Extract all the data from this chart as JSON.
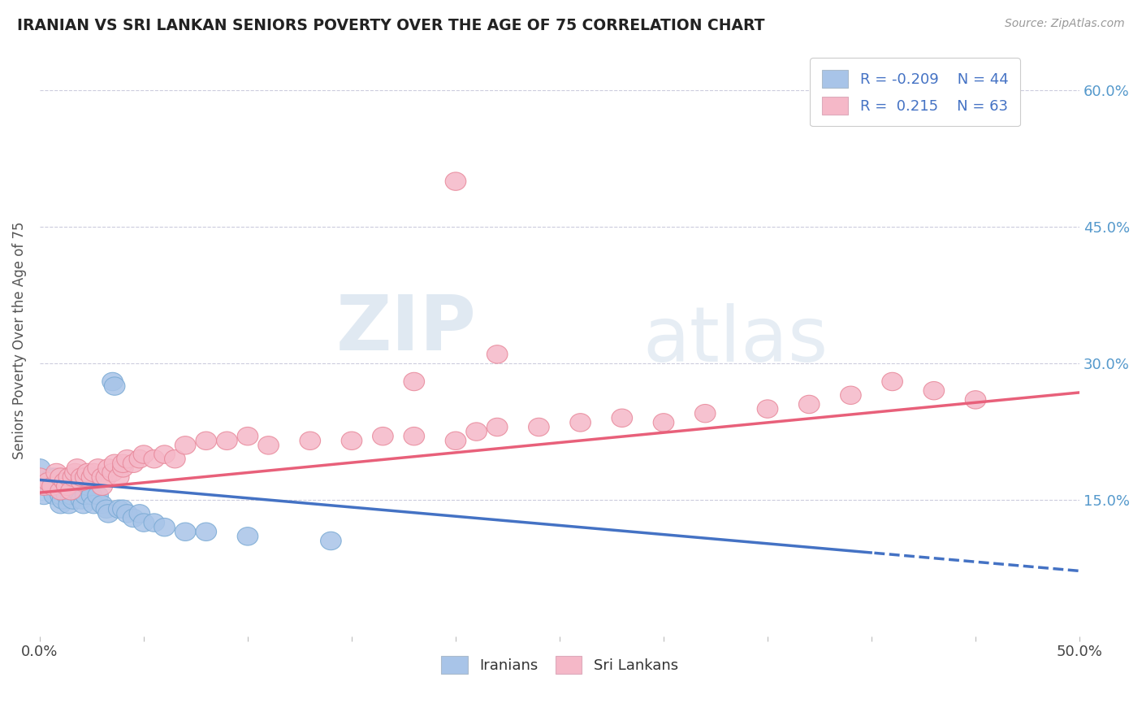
{
  "title": "IRANIAN VS SRI LANKAN SENIORS POVERTY OVER THE AGE OF 75 CORRELATION CHART",
  "source": "Source: ZipAtlas.com",
  "ylabel": "Seniors Poverty Over the Age of 75",
  "xlim": [
    0.0,
    0.5
  ],
  "ylim": [
    0.0,
    0.65
  ],
  "watermark_line1": "ZIP",
  "watermark_line2": "atlas",
  "iranian_color": "#a8c4e8",
  "iranian_edge": "#7aaad4",
  "srilanka_color": "#f5b8c8",
  "srilanka_edge": "#e8889a",
  "iranian_line_color": "#4472c4",
  "srilanka_line_color": "#e8607a",
  "background_color": "#ffffff",
  "grid_color": "#ccccdd",
  "legend_text_color": "#4472c4",
  "right_label_color": "#5599cc",
  "iranians_x": [
    0.0,
    0.002,
    0.003,
    0.005,
    0.006,
    0.007,
    0.007,
    0.008,
    0.009,
    0.01,
    0.01,
    0.011,
    0.012,
    0.013,
    0.014,
    0.015,
    0.015,
    0.016,
    0.017,
    0.018,
    0.02,
    0.021,
    0.022,
    0.023,
    0.025,
    0.026,
    0.028,
    0.03,
    0.032,
    0.033,
    0.035,
    0.036,
    0.038,
    0.04,
    0.042,
    0.045,
    0.048,
    0.05,
    0.055,
    0.06,
    0.07,
    0.08,
    0.1,
    0.14
  ],
  "iranians_y": [
    0.185,
    0.155,
    0.165,
    0.17,
    0.175,
    0.155,
    0.165,
    0.175,
    0.16,
    0.145,
    0.155,
    0.15,
    0.16,
    0.155,
    0.145,
    0.155,
    0.165,
    0.15,
    0.17,
    0.16,
    0.15,
    0.145,
    0.155,
    0.165,
    0.155,
    0.145,
    0.155,
    0.145,
    0.14,
    0.135,
    0.28,
    0.275,
    0.14,
    0.14,
    0.135,
    0.13,
    0.135,
    0.125,
    0.125,
    0.12,
    0.115,
    0.115,
    0.11,
    0.105
  ],
  "srilanka_x": [
    0.0,
    0.002,
    0.004,
    0.006,
    0.008,
    0.01,
    0.01,
    0.012,
    0.013,
    0.014,
    0.015,
    0.016,
    0.017,
    0.018,
    0.02,
    0.02,
    0.022,
    0.023,
    0.025,
    0.026,
    0.028,
    0.03,
    0.03,
    0.032,
    0.033,
    0.035,
    0.036,
    0.038,
    0.04,
    0.04,
    0.042,
    0.045,
    0.048,
    0.05,
    0.055,
    0.06,
    0.065,
    0.07,
    0.08,
    0.09,
    0.1,
    0.11,
    0.13,
    0.15,
    0.165,
    0.18,
    0.2,
    0.21,
    0.22,
    0.24,
    0.26,
    0.28,
    0.3,
    0.32,
    0.35,
    0.37,
    0.39,
    0.41,
    0.43,
    0.45,
    0.18,
    0.2,
    0.22
  ],
  "srilanka_y": [
    0.175,
    0.165,
    0.17,
    0.165,
    0.18,
    0.16,
    0.175,
    0.17,
    0.165,
    0.175,
    0.16,
    0.175,
    0.18,
    0.185,
    0.17,
    0.175,
    0.175,
    0.18,
    0.175,
    0.18,
    0.185,
    0.165,
    0.175,
    0.175,
    0.185,
    0.18,
    0.19,
    0.175,
    0.185,
    0.19,
    0.195,
    0.19,
    0.195,
    0.2,
    0.195,
    0.2,
    0.195,
    0.21,
    0.215,
    0.215,
    0.22,
    0.21,
    0.215,
    0.215,
    0.22,
    0.22,
    0.215,
    0.225,
    0.23,
    0.23,
    0.235,
    0.24,
    0.235,
    0.245,
    0.25,
    0.255,
    0.265,
    0.28,
    0.27,
    0.26,
    0.28,
    0.5,
    0.31
  ]
}
